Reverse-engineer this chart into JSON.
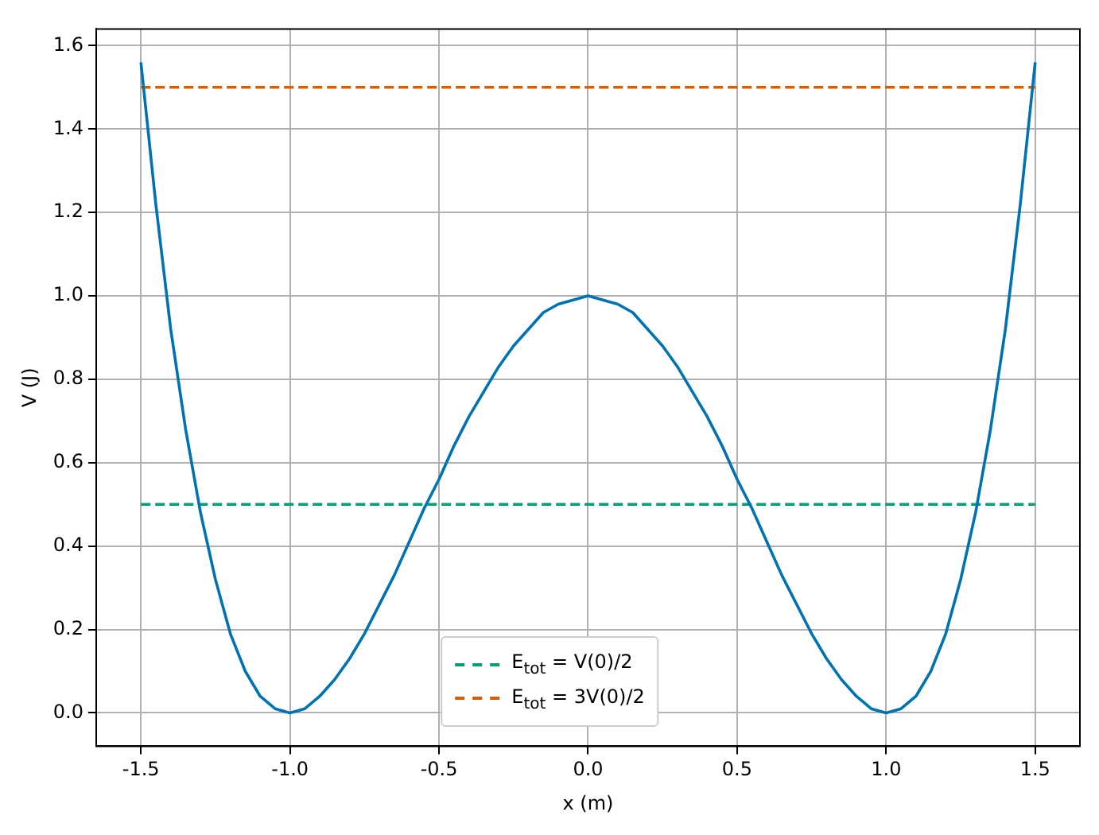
{
  "chart_data": {
    "type": "line",
    "xlabel": "x (m)",
    "ylabel": "V (J)",
    "series": [
      {
        "color": "#0072b2",
        "x": [
          -1.5,
          -1.45,
          -1.4,
          -1.35,
          -1.3,
          -1.25,
          -1.2,
          -1.15,
          -1.1,
          -1.05,
          -1.0,
          -0.95,
          -0.9,
          -0.85,
          -0.8,
          -0.75,
          -0.7,
          -0.65,
          -0.6,
          -0.55,
          -0.5,
          -0.45,
          -0.4,
          -0.35,
          -0.3,
          -0.25,
          -0.2,
          -0.15,
          -0.1,
          -0.05,
          0,
          0.05,
          0.1,
          0.15,
          0.2,
          0.25,
          0.3,
          0.35,
          0.4,
          0.45,
          0.5,
          0.55,
          0.6,
          0.65,
          0.7,
          0.75,
          0.8,
          0.85,
          0.9,
          0.95,
          1.0,
          1.05,
          1.1,
          1.15,
          1.2,
          1.25,
          1.3,
          1.35,
          1.4,
          1.45,
          1.5
        ],
        "values": [
          1.56,
          1.22,
          0.92,
          0.68,
          0.48,
          0.32,
          0.19,
          0.1,
          0.04,
          0.01,
          0,
          0.01,
          0.04,
          0.08,
          0.13,
          0.19,
          0.26,
          0.33,
          0.41,
          0.49,
          0.56,
          0.64,
          0.71,
          0.77,
          0.83,
          0.88,
          0.92,
          0.96,
          0.98,
          0.99,
          1.0,
          0.99,
          0.98,
          0.96,
          0.92,
          0.88,
          0.83,
          0.77,
          0.71,
          0.64,
          0.56,
          0.49,
          0.41,
          0.33,
          0.26,
          0.19,
          0.13,
          0.08,
          0.04,
          0.01,
          0,
          0.01,
          0.04,
          0.1,
          0.19,
          0.32,
          0.48,
          0.68,
          0.92,
          1.22,
          1.56
        ]
      },
      {
        "name": "E$_{tot}$ = V(0)/2",
        "color": "#009e73",
        "line_style": "dashed",
        "x": [
          -1.5,
          1.5
        ],
        "values": [
          0.5,
          0.5
        ]
      },
      {
        "name": "E$_{tot}$ = 3V(0)/2",
        "color": "#d55e00",
        "line_style": "dashed",
        "x": [
          -1.5,
          1.5
        ],
        "values": [
          1.5,
          1.5
        ]
      }
    ],
    "xlim": [
      -1.65,
      1.65
    ],
    "ylim": [
      -0.08,
      1.64
    ],
    "xticks": [
      {
        "value": -1.5,
        "label": "-1.5"
      },
      {
        "value": -1.0,
        "label": "-1.0"
      },
      {
        "value": -0.5,
        "label": "-0.5"
      },
      {
        "value": 0,
        "label": "0.0"
      },
      {
        "value": 0.5,
        "label": "0.5"
      },
      {
        "value": 1.0,
        "label": "1.0"
      },
      {
        "value": 1.5,
        "label": "1.5"
      }
    ],
    "yticks": [
      {
        "value": 0,
        "label": "0.0"
      },
      {
        "value": 0.2,
        "label": "0.2"
      },
      {
        "value": 0.4,
        "label": "0.4"
      },
      {
        "value": 0.6,
        "label": "0.6"
      },
      {
        "value": 0.8,
        "label": "0.8"
      },
      {
        "value": 1.0,
        "label": "1.0"
      },
      {
        "value": 1.2,
        "label": "1.2"
      },
      {
        "value": 1.4,
        "label": "1.4"
      },
      {
        "value": 1.6,
        "label": "1.6"
      }
    ],
    "grid": true,
    "legend": "bottom",
    "marker": "none"
  }
}
